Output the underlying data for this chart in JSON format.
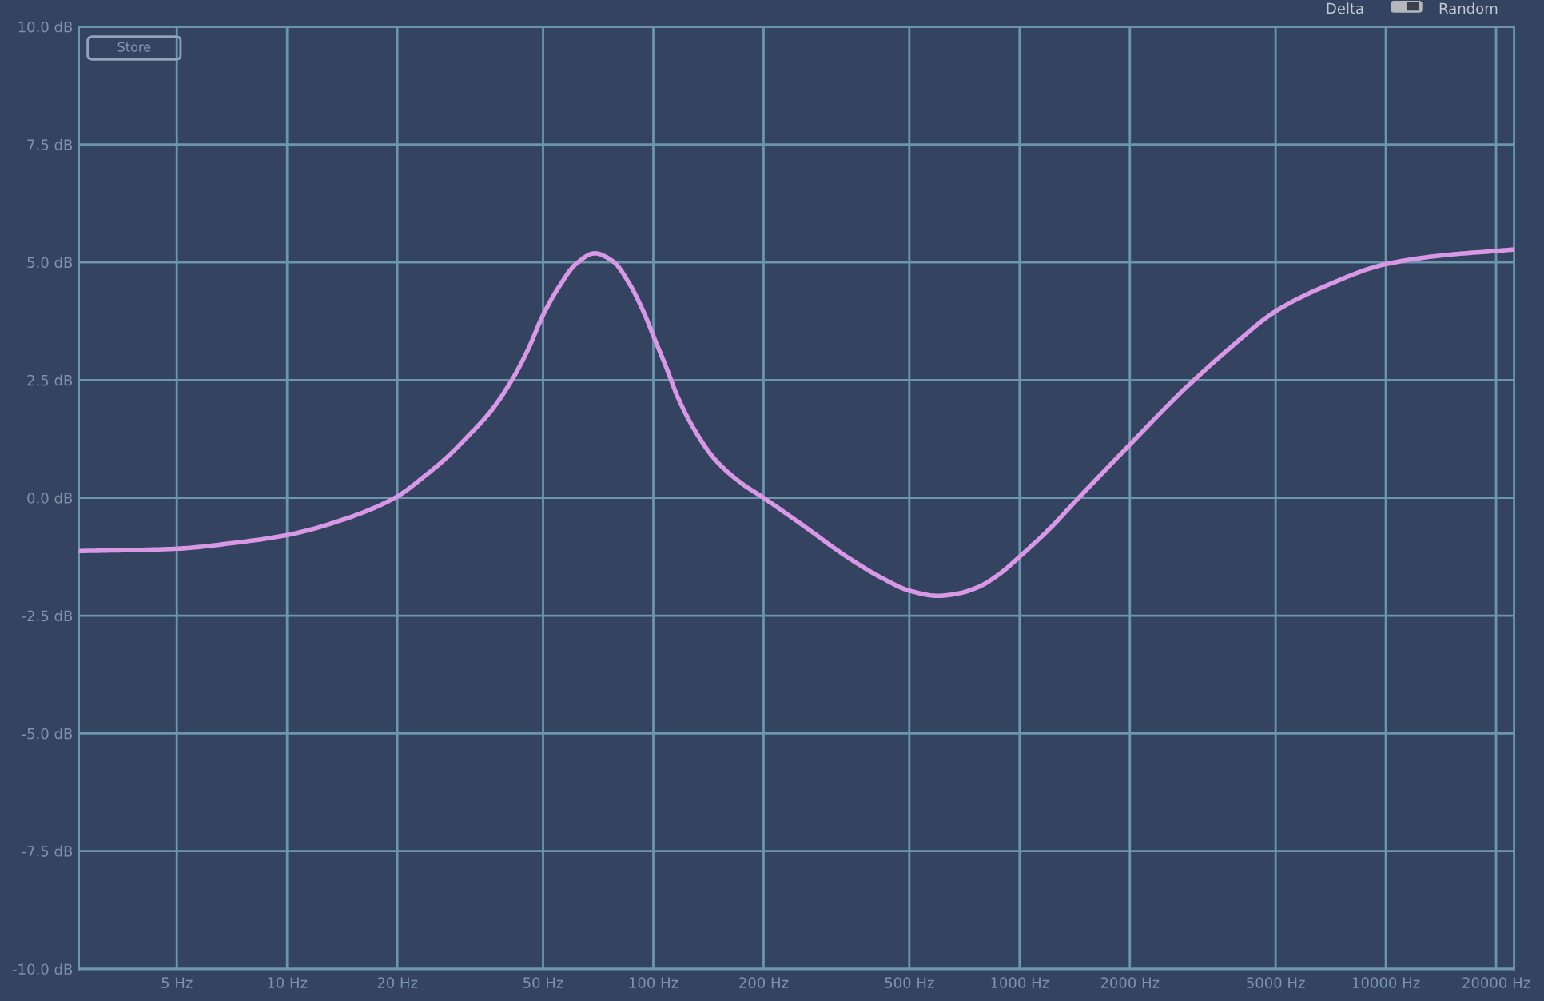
{
  "chart_data": {
    "type": "line",
    "log": "x",
    "grid": true,
    "line_style": "solid",
    "xlim": [
      2.7,
      22400
    ],
    "xticks": [
      {
        "value": 5,
        "label": "5 Hz"
      },
      {
        "value": 10,
        "label": "10 Hz"
      },
      {
        "value": 20,
        "label": "20 Hz"
      },
      {
        "value": 50,
        "label": "50 Hz"
      },
      {
        "value": 100,
        "label": "100 Hz"
      },
      {
        "value": 200,
        "label": "200 Hz"
      },
      {
        "value": 500,
        "label": "500 Hz"
      },
      {
        "value": 1000,
        "label": "1000 Hz"
      },
      {
        "value": 2000,
        "label": "2000 Hz"
      },
      {
        "value": 5000,
        "label": "5000 Hz"
      },
      {
        "value": 10000,
        "label": "10000 Hz"
      },
      {
        "value": 20000,
        "label": "20000 Hz"
      }
    ],
    "ylim": [
      -10,
      10
    ],
    "yticks": [
      {
        "value": -10,
        "label": "-10.0 dB"
      },
      {
        "value": -7.5,
        "label": "-7.5 dB"
      },
      {
        "value": -5,
        "label": "-5.0 dB"
      },
      {
        "value": -2.5,
        "label": "-2.5 dB"
      },
      {
        "value": 0,
        "label": "0.0 dB"
      },
      {
        "value": 2.5,
        "label": "2.5 dB"
      },
      {
        "value": 5,
        "label": "5.0 dB"
      },
      {
        "value": 7.5,
        "label": "7.5 dB"
      },
      {
        "value": 10,
        "label": "10.0 dB"
      }
    ],
    "x": [
      2.7,
      3.7,
      5,
      7.1,
      10,
      15,
      20,
      23.3,
      27.5,
      30.4,
      36,
      41.1,
      45.5,
      50,
      55.6,
      61.4,
      69.1,
      77.6,
      85.8,
      94.9,
      100,
      108.6,
      116,
      128.3,
      146.8,
      173.4,
      200,
      259,
      339,
      428,
      500,
      599,
      680,
      773,
      880,
      1000,
      1210,
      1450,
      2000,
      2795,
      3778,
      5000,
      6677,
      10000,
      14400,
      20000,
      22300
    ],
    "series": [
      {
        "color": "#d898e6",
        "values": [
          -1.13,
          -1.11,
          -1.08,
          -0.96,
          -0.79,
          -0.4,
          0.03,
          0.41,
          0.88,
          1.22,
          1.84,
          2.5,
          3.15,
          3.88,
          4.51,
          4.96,
          5.19,
          5.02,
          4.56,
          3.88,
          3.44,
          2.76,
          2.18,
          1.5,
          0.83,
          0.32,
          0.0,
          -0.61,
          -1.26,
          -1.73,
          -1.97,
          -2.08,
          -2.03,
          -1.89,
          -1.62,
          -1.25,
          -0.65,
          0.0,
          1.13,
          2.28,
          3.2,
          3.96,
          4.46,
          4.96,
          5.15,
          5.24,
          5.27
        ]
      }
    ],
    "annotations": [
      "Store",
      "Delta",
      "Random"
    ]
  }
}
